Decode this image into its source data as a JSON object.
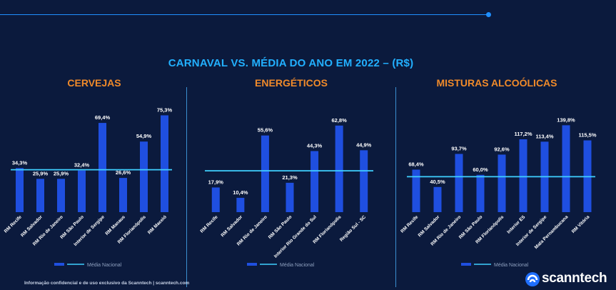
{
  "title": "CARNAVAL VS. MÉDIA DO ANO EM 2022 – (R$)",
  "colors": {
    "background": "#0b1a3d",
    "bar": "#1f4fe0",
    "average_line": "#3fd0ff",
    "panel_title": "#f08a2a",
    "main_title": "#22b0ff"
  },
  "legend_label": "Média Nacional",
  "footer": "Informação confidencial e de uso exclusivo da Scanntech | scanntech.com",
  "brand": "scanntech",
  "chart_data": [
    {
      "type": "bar",
      "title": "CERVEJAS",
      "categories": [
        "RM Recife",
        "RM Salvador",
        "RM Rio de Janeiro",
        "RM São Paulo",
        "Interior de Sergipe",
        "RM Manaus",
        "RM Florianópolis",
        "RM Maceió"
      ],
      "values": [
        34.3,
        25.9,
        25.9,
        32.4,
        69.4,
        26.6,
        54.9,
        75.3
      ],
      "labels": [
        "34,3%",
        "25,9%",
        "25,9%",
        "32,4%",
        "69,4%",
        "26,6%",
        "54,9%",
        "75,3%"
      ],
      "average": 33.0,
      "series": [
        {
          "name": "Média Nacional"
        }
      ]
    },
    {
      "type": "bar",
      "title": "ENERGÉTICOS",
      "categories": [
        "RM Recife",
        "RM Salvador",
        "RM Rio de Janeiro",
        "RM São Paulo",
        "Interior Rio Grande do Sul",
        "RM Florianópolis",
        "Região Sul - SC"
      ],
      "values": [
        17.9,
        10.4,
        55.6,
        21.3,
        44.3,
        62.8,
        44.9
      ],
      "labels": [
        "17,9%",
        "10,4%",
        "55,6%",
        "21,3%",
        "44,3%",
        "62,8%",
        "44,9%"
      ],
      "average": 30.0,
      "series": [
        {
          "name": "Média Nacional"
        }
      ]
    },
    {
      "type": "bar",
      "title": "MISTURAS ALCOÓLICAS",
      "categories": [
        "RM Recife",
        "RM Salvador",
        "RM Rio de Janeiro",
        "RM São Paulo",
        "RM Florianópolis",
        "Interior ES",
        "Interior de Sergipe",
        "Mata Pernambucana",
        "RM Vitória"
      ],
      "values": [
        68.4,
        40.5,
        93.7,
        60.0,
        92.6,
        117.2,
        113.4,
        139.8,
        115.5
      ],
      "labels": [
        "68,4%",
        "40,5%",
        "93,7%",
        "60,0%",
        "92,6%",
        "117,2%",
        "113,4%",
        "139,8%",
        "115,5%"
      ],
      "average": 57.0,
      "series": [
        {
          "name": "Média Nacional"
        }
      ]
    }
  ]
}
